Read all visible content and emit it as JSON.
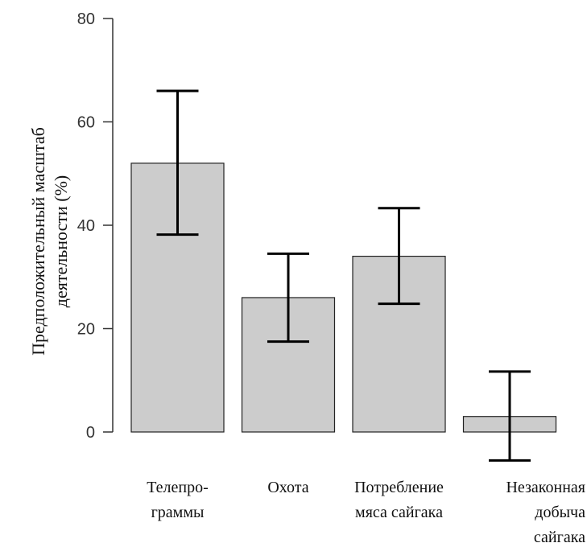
{
  "chart_data": {
    "type": "bar",
    "title": "",
    "xlabel": "",
    "ylabel_lines": [
      "Предположительный масштаб",
      "деятельности  (%)"
    ],
    "ylim": [
      0,
      80
    ],
    "yticks": [
      "0",
      "20",
      "40",
      "60",
      "80"
    ],
    "categories": [
      [
        "Телепро-",
        "граммы"
      ],
      [
        "Охота"
      ],
      [
        "Потребление",
        "мяса сайгака"
      ],
      [
        "Незаконная",
        "добыча",
        "сайгака"
      ]
    ],
    "values": [
      52,
      26,
      34,
      3
    ],
    "error_low": [
      38.2,
      17.5,
      24.8,
      -5.5
    ],
    "error_high": [
      66,
      34.5,
      43.3,
      11.7
    ],
    "bar_color": "#cccccc",
    "grid": false
  }
}
